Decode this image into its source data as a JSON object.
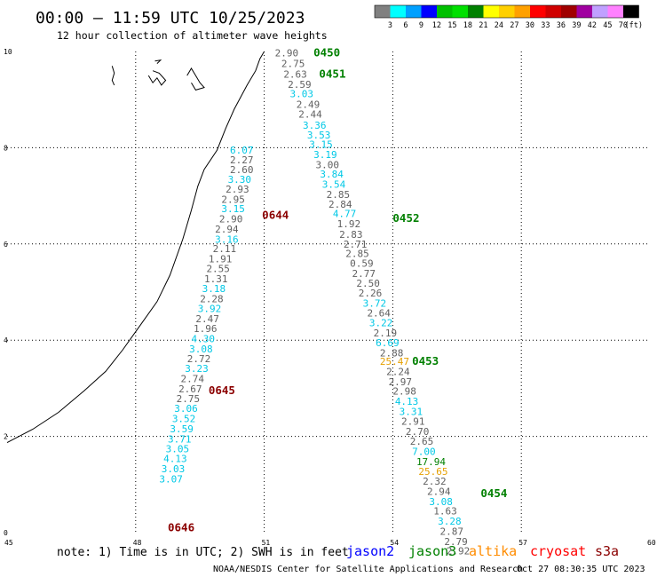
{
  "title": "00:00 – 11:59 UTC 10/25/2023",
  "subtitle": "12 hour collection of altimeter wave heights",
  "note": "note: 1) Time is in UTC; 2) SWH is in feet",
  "footer": {
    "credit": "NOAA/NESDIS Center for Satellite Applications and Research",
    "timestamp": "Oct 27 08:30:35 UTC 2023"
  },
  "satellites": [
    {
      "name": "jason2",
      "color": "#0000ff"
    },
    {
      "name": "jason3",
      "color": "#008000"
    },
    {
      "name": "altika",
      "color": "#ff8c00"
    },
    {
      "name": "cryosat",
      "color": "#ff0000"
    },
    {
      "name": "s3a",
      "color": "#8b0000"
    }
  ],
  "colorbar": {
    "unit": "(ft)",
    "colors": [
      "#808080",
      "#00ffff",
      "#00a0ff",
      "#0000ff",
      "#00c000",
      "#00e000",
      "#008000",
      "#ffff00",
      "#ffd000",
      "#ffa000",
      "#ff0000",
      "#d00000",
      "#a00000",
      "#a000a0",
      "#c0a0ff",
      "#ff80ff",
      "#000000"
    ],
    "labels": [
      "3",
      "6",
      "9",
      "12",
      "15",
      "18",
      "21",
      "24",
      "27",
      "30",
      "33",
      "36",
      "39",
      "42",
      "45",
      "70"
    ]
  },
  "chart_data": {
    "type": "scatter",
    "xlim": [
      45,
      60
    ],
    "ylim": [
      0,
      10
    ],
    "xticks": [
      "45",
      "48",
      "51",
      "54",
      "57",
      "60"
    ],
    "yticks": [
      "0",
      "2",
      "4",
      "6",
      "8",
      "10"
    ],
    "grid": true,
    "value_colors": {
      "normal": "#606060",
      "cyan": "#00c8e6",
      "green": "#008000",
      "orange": "#e6a000"
    },
    "coastline": [
      [
        45,
        1.87
      ],
      [
        45.6,
        2.15
      ],
      [
        46.2,
        2.5
      ],
      [
        46.8,
        2.95
      ],
      [
        47.3,
        3.35
      ],
      [
        47.7,
        3.8
      ],
      [
        48.1,
        4.3
      ],
      [
        48.5,
        4.8
      ],
      [
        48.8,
        5.35
      ],
      [
        49.1,
        6.1
      ],
      [
        49.3,
        6.7
      ],
      [
        49.45,
        7.2
      ],
      [
        49.6,
        7.55
      ],
      [
        49.9,
        7.95
      ],
      [
        50.1,
        8.4
      ],
      [
        50.3,
        8.8
      ],
      [
        50.6,
        9.3
      ],
      [
        50.8,
        9.6
      ],
      [
        50.9,
        9.85
      ],
      [
        51.0,
        10.0
      ]
    ],
    "islands": [
      [
        [
          47.45,
          9.7
        ],
        [
          47.5,
          9.55
        ],
        [
          47.45,
          9.4
        ],
        [
          47.5,
          9.3
        ]
      ],
      [
        [
          48.3,
          9.5
        ],
        [
          48.4,
          9.35
        ],
        [
          48.5,
          9.45
        ],
        [
          48.6,
          9.3
        ],
        [
          48.7,
          9.4
        ],
        [
          48.55,
          9.55
        ],
        [
          48.4,
          9.6
        ]
      ],
      [
        [
          49.2,
          9.5
        ],
        [
          49.3,
          9.65
        ],
        [
          49.4,
          9.5
        ],
        [
          49.5,
          9.35
        ],
        [
          49.6,
          9.25
        ],
        [
          49.4,
          9.2
        ],
        [
          49.3,
          9.35
        ]
      ],
      [
        [
          48.5,
          9.75
        ],
        [
          48.58,
          9.82
        ],
        [
          48.45,
          9.8
        ]
      ]
    ],
    "passes": [
      {
        "label": "0450",
        "x": 52.15,
        "y": 9.97,
        "color": "#008000"
      },
      {
        "label": "0451",
        "x": 52.28,
        "y": 9.53,
        "color": "#008000"
      },
      {
        "label": "0452",
        "x": 54.0,
        "y": 6.53,
        "color": "#008000"
      },
      {
        "label": "0453",
        "x": 54.45,
        "y": 3.56,
        "color": "#008000"
      },
      {
        "label": "0454",
        "x": 56.05,
        "y": 0.81,
        "color": "#008000"
      },
      {
        "label": "0644",
        "x": 50.95,
        "y": 6.6,
        "color": "#8b0000"
      },
      {
        "label": "0645",
        "x": 49.7,
        "y": 2.95,
        "color": "#8b0000"
      },
      {
        "label": "0646",
        "x": 48.75,
        "y": 0.1,
        "color": "#8b0000"
      }
    ],
    "series": [
      {
        "points": [
          {
            "x": 51.25,
            "y": 9.97,
            "v": "2.90",
            "c": "normal"
          },
          {
            "x": 51.4,
            "y": 9.75,
            "v": "2.75",
            "c": "normal"
          },
          {
            "x": 51.45,
            "y": 9.53,
            "v": "2.63",
            "c": "normal"
          },
          {
            "x": 51.55,
            "y": 9.32,
            "v": "2.59",
            "c": "normal"
          },
          {
            "x": 51.6,
            "y": 9.12,
            "v": "3.03",
            "c": "cyan"
          },
          {
            "x": 51.75,
            "y": 8.9,
            "v": "2.49",
            "c": "normal"
          },
          {
            "x": 51.8,
            "y": 8.7,
            "v": "2.44",
            "c": "normal"
          },
          {
            "x": 51.9,
            "y": 8.47,
            "v": "3.36",
            "c": "cyan"
          },
          {
            "x": 52.0,
            "y": 8.27,
            "v": "3.53",
            "c": "cyan"
          },
          {
            "x": 52.05,
            "y": 8.07,
            "v": "3.15",
            "c": "cyan"
          },
          {
            "x": 52.15,
            "y": 7.86,
            "v": "3.19",
            "c": "cyan"
          },
          {
            "x": 52.2,
            "y": 7.65,
            "v": "3.00",
            "c": "normal"
          },
          {
            "x": 52.3,
            "y": 7.45,
            "v": "3.84",
            "c": "cyan"
          },
          {
            "x": 52.35,
            "y": 7.24,
            "v": "3.54",
            "c": "cyan"
          },
          {
            "x": 52.45,
            "y": 7.03,
            "v": "2.85",
            "c": "normal"
          },
          {
            "x": 52.5,
            "y": 6.83,
            "v": "2.84",
            "c": "normal"
          },
          {
            "x": 52.6,
            "y": 6.63,
            "v": "4.77",
            "c": "cyan"
          },
          {
            "x": 52.7,
            "y": 6.42,
            "v": "1.92",
            "c": "normal"
          },
          {
            "x": 52.75,
            "y": 6.2,
            "v": "2.83",
            "c": "normal"
          },
          {
            "x": 52.85,
            "y": 6.0,
            "v": "2.71",
            "c": "normal"
          },
          {
            "x": 52.9,
            "y": 5.8,
            "v": "2.85",
            "c": "normal"
          },
          {
            "x": 53.0,
            "y": 5.6,
            "v": "0.59",
            "c": "normal"
          },
          {
            "x": 53.05,
            "y": 5.39,
            "v": "2.77",
            "c": "normal"
          },
          {
            "x": 53.15,
            "y": 5.18,
            "v": "2.50",
            "c": "normal"
          },
          {
            "x": 53.2,
            "y": 4.98,
            "v": "2.26",
            "c": "normal"
          },
          {
            "x": 53.3,
            "y": 4.77,
            "v": "3.72",
            "c": "cyan"
          },
          {
            "x": 53.4,
            "y": 4.57,
            "v": "2.64",
            "c": "normal"
          },
          {
            "x": 53.45,
            "y": 4.36,
            "v": "3.22",
            "c": "cyan"
          },
          {
            "x": 53.55,
            "y": 4.15,
            "v": "2.19",
            "c": "normal"
          },
          {
            "x": 53.6,
            "y": 3.95,
            "v": "6.69",
            "c": "cyan"
          },
          {
            "x": 53.7,
            "y": 3.74,
            "v": "2.88",
            "c": "normal"
          },
          {
            "x": 53.7,
            "y": 3.56,
            "v": "25.47",
            "c": "orange"
          },
          {
            "x": 53.85,
            "y": 3.35,
            "v": "2.24",
            "c": "normal"
          },
          {
            "x": 53.9,
            "y": 3.14,
            "v": "2.97",
            "c": "normal"
          },
          {
            "x": 54.0,
            "y": 2.94,
            "v": "2.98",
            "c": "normal"
          },
          {
            "x": 54.05,
            "y": 2.73,
            "v": "4.13",
            "c": "cyan"
          },
          {
            "x": 54.15,
            "y": 2.52,
            "v": "3.31",
            "c": "cyan"
          },
          {
            "x": 54.2,
            "y": 2.32,
            "v": "2.91",
            "c": "normal"
          },
          {
            "x": 54.3,
            "y": 2.1,
            "v": "2.70",
            "c": "normal"
          },
          {
            "x": 54.4,
            "y": 1.9,
            "v": "2.65",
            "c": "normal"
          },
          {
            "x": 54.45,
            "y": 1.69,
            "v": "7.00",
            "c": "cyan"
          },
          {
            "x": 54.55,
            "y": 1.48,
            "v": "17.94",
            "c": "green"
          },
          {
            "x": 54.6,
            "y": 1.27,
            "v": "25.65",
            "c": "orange"
          },
          {
            "x": 54.7,
            "y": 1.07,
            "v": "2.32",
            "c": "normal"
          },
          {
            "x": 54.8,
            "y": 0.86,
            "v": "2.94",
            "c": "normal"
          },
          {
            "x": 54.85,
            "y": 0.65,
            "v": "3.08",
            "c": "cyan"
          },
          {
            "x": 54.95,
            "y": 0.45,
            "v": "1.63",
            "c": "normal"
          },
          {
            "x": 55.05,
            "y": 0.24,
            "v": "3.28",
            "c": "cyan"
          },
          {
            "x": 55.1,
            "y": 0.03,
            "v": "2.87",
            "c": "normal"
          },
          {
            "x": 55.2,
            "y": -0.18,
            "v": "2.79",
            "c": "normal"
          },
          {
            "x": 55.25,
            "y": -0.38,
            "v": "2.92",
            "c": "normal"
          }
        ]
      },
      {
        "points": [
          {
            "x": 50.2,
            "y": 7.95,
            "v": "6.07",
            "c": "cyan"
          },
          {
            "x": 50.2,
            "y": 7.75,
            "v": "2.27",
            "c": "normal"
          },
          {
            "x": 50.2,
            "y": 7.55,
            "v": "2.60",
            "c": "normal"
          },
          {
            "x": 50.15,
            "y": 7.34,
            "v": "3.30",
            "c": "cyan"
          },
          {
            "x": 50.1,
            "y": 7.14,
            "v": "2.93",
            "c": "normal"
          },
          {
            "x": 50.0,
            "y": 6.93,
            "v": "2.95",
            "c": "normal"
          },
          {
            "x": 50.0,
            "y": 6.73,
            "v": "3.15",
            "c": "cyan"
          },
          {
            "x": 49.95,
            "y": 6.52,
            "v": "2.90",
            "c": "normal"
          },
          {
            "x": 49.85,
            "y": 6.31,
            "v": "2.94",
            "c": "normal"
          },
          {
            "x": 49.85,
            "y": 6.1,
            "v": "3.16",
            "c": "cyan"
          },
          {
            "x": 49.8,
            "y": 5.9,
            "v": "2.11",
            "c": "normal"
          },
          {
            "x": 49.7,
            "y": 5.69,
            "v": "1.91",
            "c": "normal"
          },
          {
            "x": 49.65,
            "y": 5.49,
            "v": "2.55",
            "c": "normal"
          },
          {
            "x": 49.6,
            "y": 5.28,
            "v": "1.31",
            "c": "normal"
          },
          {
            "x": 49.55,
            "y": 5.07,
            "v": "3.18",
            "c": "cyan"
          },
          {
            "x": 49.5,
            "y": 4.86,
            "v": "2.28",
            "c": "normal"
          },
          {
            "x": 49.45,
            "y": 4.66,
            "v": "3.92",
            "c": "cyan"
          },
          {
            "x": 49.4,
            "y": 4.45,
            "v": "2.47",
            "c": "normal"
          },
          {
            "x": 49.35,
            "y": 4.24,
            "v": "1.96",
            "c": "normal"
          },
          {
            "x": 49.3,
            "y": 4.03,
            "v": "4.30",
            "c": "cyan"
          },
          {
            "x": 49.25,
            "y": 3.82,
            "v": "3.08",
            "c": "cyan"
          },
          {
            "x": 49.2,
            "y": 3.62,
            "v": "2.72",
            "c": "normal"
          },
          {
            "x": 49.15,
            "y": 3.41,
            "v": "3.23",
            "c": "cyan"
          },
          {
            "x": 49.05,
            "y": 3.2,
            "v": "2.74",
            "c": "normal"
          },
          {
            "x": 49.0,
            "y": 2.99,
            "v": "2.67",
            "c": "normal"
          },
          {
            "x": 48.95,
            "y": 2.79,
            "v": "2.75",
            "c": "normal"
          },
          {
            "x": 48.9,
            "y": 2.58,
            "v": "3.06",
            "c": "cyan"
          },
          {
            "x": 48.85,
            "y": 2.37,
            "v": "3.52",
            "c": "cyan"
          },
          {
            "x": 48.8,
            "y": 2.16,
            "v": "3.59",
            "c": "cyan"
          },
          {
            "x": 48.75,
            "y": 1.95,
            "v": "3.71",
            "c": "cyan"
          },
          {
            "x": 48.7,
            "y": 1.74,
            "v": "3.05",
            "c": "cyan"
          },
          {
            "x": 48.65,
            "y": 1.54,
            "v": "4.13",
            "c": "cyan"
          },
          {
            "x": 48.6,
            "y": 1.33,
            "v": "3.03",
            "c": "cyan"
          },
          {
            "x": 48.55,
            "y": 1.12,
            "v": "3.07",
            "c": "cyan"
          }
        ]
      }
    ]
  }
}
